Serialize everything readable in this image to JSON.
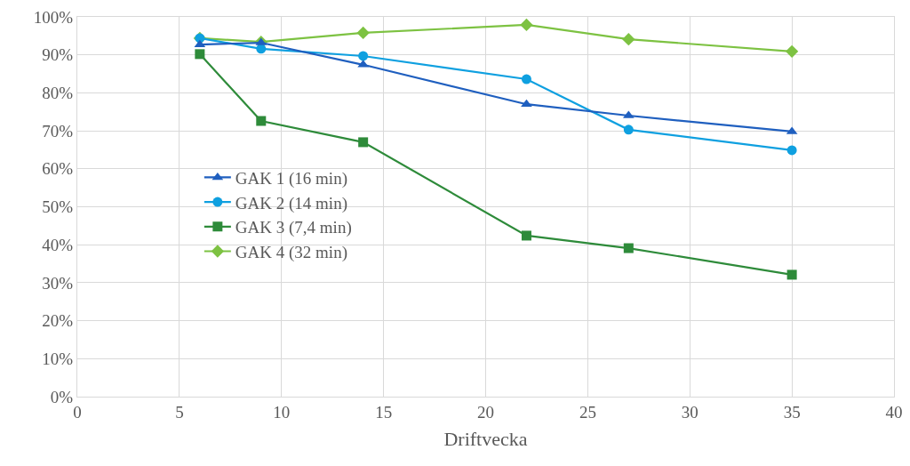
{
  "chart_data": {
    "type": "line",
    "xlabel": "Driftvecka",
    "x": [
      6,
      9,
      14,
      22,
      27,
      35
    ],
    "series": [
      {
        "name": "GAK 1 (16 min)",
        "color": "#1f5fbf",
        "marker": "triangle",
        "values": [
          92.7,
          93.2,
          87.4,
          77.0,
          74.0,
          69.8
        ]
      },
      {
        "name": "GAK 2 (14 min)",
        "color": "#0fa0e0",
        "marker": "circle",
        "values": [
          94.4,
          91.6,
          89.7,
          83.6,
          70.3,
          64.9
        ]
      },
      {
        "name": "GAK 3 (7,4 min)",
        "color": "#2e8b3a",
        "marker": "square",
        "values": [
          90.2,
          72.6,
          67.0,
          42.4,
          39.1,
          32.1
        ]
      },
      {
        "name": "GAK 4 (32 min)",
        "color": "#7dc242",
        "marker": "diamond",
        "values": [
          94.4,
          93.4,
          95.8,
          97.9,
          94.1,
          90.9
        ]
      }
    ],
    "xlim": [
      0,
      40
    ],
    "xticks": [
      0,
      5,
      10,
      15,
      20,
      25,
      30,
      35,
      40
    ],
    "ylim": [
      0,
      100
    ],
    "yticks": [
      {
        "value": 0,
        "label": "0%"
      },
      {
        "value": 10,
        "label": "10%"
      },
      {
        "value": 20,
        "label": "20%"
      },
      {
        "value": 30,
        "label": "30%"
      },
      {
        "value": 40,
        "label": "40%"
      },
      {
        "value": 50,
        "label": "50%"
      },
      {
        "value": 60,
        "label": "60%"
      },
      {
        "value": 70,
        "label": "70%"
      },
      {
        "value": 80,
        "label": "80%"
      },
      {
        "value": 90,
        "label": "90%"
      },
      {
        "value": 100,
        "label": "100%"
      }
    ],
    "grid": true,
    "legend": "center left",
    "line_style": "solid"
  }
}
